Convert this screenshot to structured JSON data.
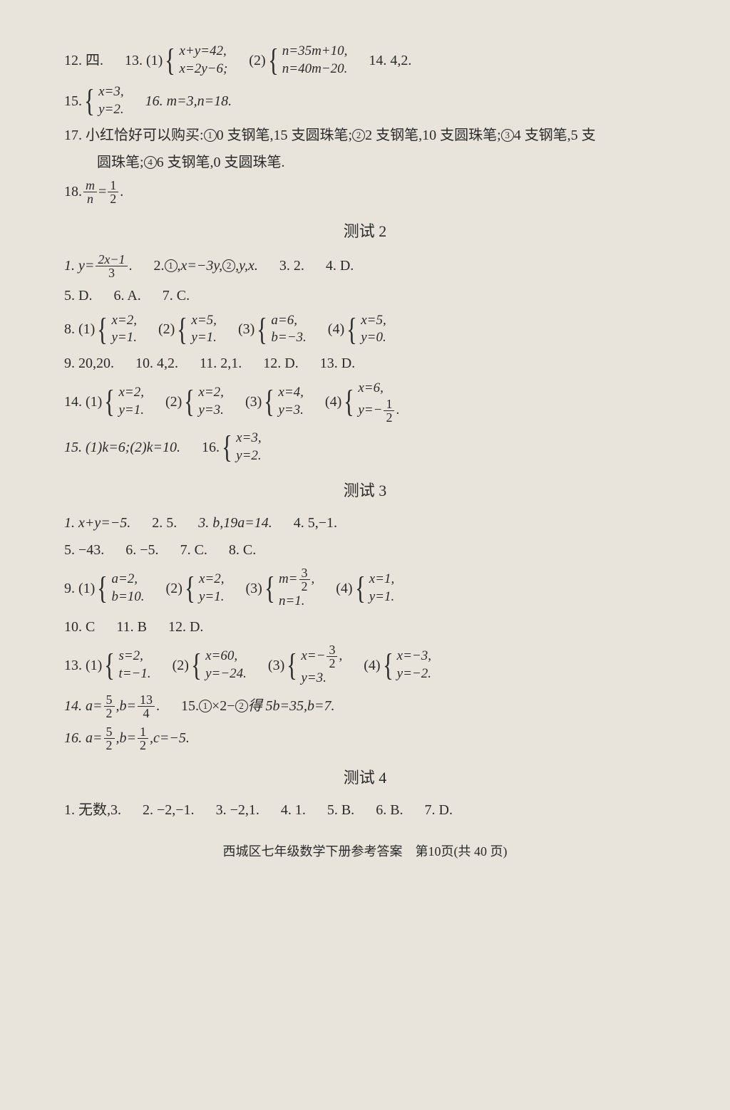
{
  "background_color": "#e8e4dc",
  "text_color": "#2a2a2a",
  "font_family": "SimSun, Times New Roman, serif",
  "base_fontsize": 20,
  "top": {
    "q12": "12. 四.",
    "q13_label": "13. (1)",
    "q13_1_top": "x+y=42,",
    "q13_1_bot": "x=2y−6;",
    "q13_2_label": "(2)",
    "q13_2_top": "n=35m+10,",
    "q13_2_bot": "n=40m−20.",
    "q14": "14. 4,2.",
    "q15_label": "15.",
    "q15_top": "x=3,",
    "q15_bot": "y=2.",
    "q16": "16. m=3,n=18.",
    "q17a": "17. 小红恰好可以购买:",
    "q17_o1": "1",
    "q17_t1": "0 支钢笔,15 支圆珠笔;",
    "q17_o2": "2",
    "q17_t2": "2 支钢笔,10 支圆珠笔;",
    "q17_o3": "3",
    "q17_t3": "4 支钢笔,5 支",
    "q17b": "圆珠笔;",
    "q17_o4": "4",
    "q17_t4": "6 支钢笔,0 支圆珠笔.",
    "q18_label": "18.",
    "q18_num": "m",
    "q18_den": "n",
    "q18_eq": "=",
    "q18_rn": "1",
    "q18_rd": "2",
    "q18_dot": "."
  },
  "test2": {
    "title": "测试 2",
    "q1_label": "1. y=",
    "q1_num": "2x−1",
    "q1_den": "3",
    "q1_dot": ".",
    "q2a": "2. ",
    "q2_o1": "1",
    "q2_t1": ",x=−3y,",
    "q2_o2": "2",
    "q2_t2": ",y,x.",
    "q3": "3. 2.",
    "q4": "4. D.",
    "q5": "5. D.",
    "q6": "6. A.",
    "q7": "7. C.",
    "q8_label": "8. (1)",
    "q8_1t": "x=2,",
    "q8_1b": "y=1.",
    "q8_2l": "(2)",
    "q8_2t": "x=5,",
    "q8_2b": "y=1.",
    "q8_3l": "(3)",
    "q8_3t": "a=6,",
    "q8_3b": "b=−3.",
    "q8_4l": "(4)",
    "q8_4t": "x=5,",
    "q8_4b": "y=0.",
    "q9": "9. 20,20.",
    "q10": "10. 4,2.",
    "q11": "11. 2,1.",
    "q12": "12. D.",
    "q13": "13. D.",
    "q14_label": "14. (1)",
    "q14_1t": "x=2,",
    "q14_1b": "y=1.",
    "q14_2l": "(2)",
    "q14_2t": "x=2,",
    "q14_2b": "y=3.",
    "q14_3l": "(3)",
    "q14_3t": "x=4,",
    "q14_3b": "y=3.",
    "q14_4l": "(4)",
    "q14_4t": "x=6,",
    "q14_4b_pre": "y=−",
    "q14_4b_n": "1",
    "q14_4b_d": "2",
    "q14_4b_post": ".",
    "q15": "15. (1)k=6;(2)k=10.",
    "q16_label": "16.",
    "q16_t": "x=3,",
    "q16_b": "y=2."
  },
  "test3": {
    "title": "测试 3",
    "q1": "1. x+y=−5.",
    "q2": "2. 5.",
    "q3": "3. b,19a=14.",
    "q4": "4. 5,−1.",
    "q5": "5. −43.",
    "q6": "6. −5.",
    "q7": "7. C.",
    "q8": "8. C.",
    "q9_label": "9. (1)",
    "q9_1t": "a=2,",
    "q9_1b": "b=10.",
    "q9_2l": "(2)",
    "q9_2t": "x=2,",
    "q9_2b": "y=1.",
    "q9_3l": "(3)",
    "q9_3t_pre": "m=",
    "q9_3t_n": "3",
    "q9_3t_d": "2",
    "q9_3t_post": ",",
    "q9_3b": "n=1.",
    "q9_4l": "(4)",
    "q9_4t": "x=1,",
    "q9_4b": "y=1.",
    "q10": "10. C",
    "q11": "11. B",
    "q12": "12. D.",
    "q13_label": "13. (1)",
    "q13_1t": "s=2,",
    "q13_1b": "t=−1.",
    "q13_2l": "(2)",
    "q13_2t": "x=60,",
    "q13_2b": "y=−24.",
    "q13_3l": "(3)",
    "q13_3t_pre": "x=−",
    "q13_3t_n": "3",
    "q13_3t_d": "2",
    "q13_3t_post": ",",
    "q13_3b": "y=3.",
    "q13_4l": "(4)",
    "q13_4t": "x=−3,",
    "q13_4b": "y=−2.",
    "q14_pre": "14. a=",
    "q14_an": "5",
    "q14_ad": "2",
    "q14_mid": ",b=",
    "q14_bn": "13",
    "q14_bd": "4",
    "q14_post": ".",
    "q15_pre": "15. ",
    "q15_o1": "1",
    "q15_mid1": "×2−",
    "q15_o2": "2",
    "q15_mid2": "得 5b=35,b=7.",
    "q16_pre": "16. a=",
    "q16_an": "5",
    "q16_ad": "2",
    "q16_m1": ",b=",
    "q16_bn": "1",
    "q16_bd": "2",
    "q16_post": ",c=−5."
  },
  "test4": {
    "title": "测试 4",
    "q1": "1. 无数,3.",
    "q2": "2. −2,−1.",
    "q3": "3. −2,1.",
    "q4": "4. 1.",
    "q5": "5. B.",
    "q6": "6. B.",
    "q7": "7. D."
  },
  "footer": "西城区七年级数学下册参考答案　第10页(共 40 页)"
}
